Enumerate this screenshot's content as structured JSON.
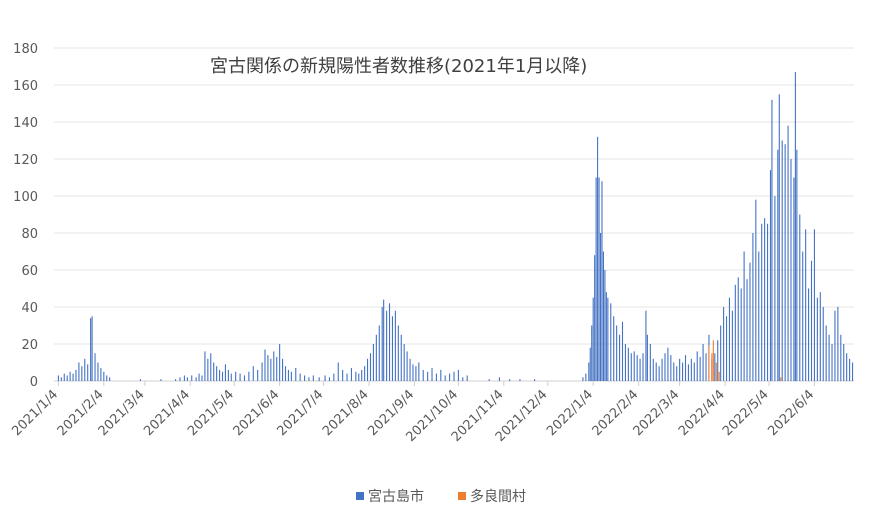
{
  "chart_data": {
    "type": "bar",
    "title": "宮古関係の新規陽性者数推移(2021年1月以降)",
    "xlabel": "",
    "ylabel": "",
    "ylim": [
      0,
      180
    ],
    "yticks": [
      0,
      20,
      40,
      60,
      80,
      100,
      120,
      140,
      160,
      180
    ],
    "x_range": [
      "2021-01-01",
      "2022-06-30"
    ],
    "xticks": [
      "2021/1/4",
      "2021/2/4",
      "2021/3/4",
      "2021/4/4",
      "2021/5/4",
      "2021/6/4",
      "2021/7/4",
      "2021/8/4",
      "2021/9/4",
      "2021/10/4",
      "2021/11/4",
      "2021/12/4",
      "2022/1/4",
      "2022/2/4",
      "2022/3/4",
      "2022/4/4",
      "2022/5/4",
      "2022/6/4"
    ],
    "grid": true,
    "legend_position": "bottom",
    "series": [
      {
        "name": "宮古島市",
        "color": "#4472C4",
        "points": [
          [
            "2021-01-04",
            3
          ],
          [
            "2021-01-06",
            2
          ],
          [
            "2021-01-08",
            4
          ],
          [
            "2021-01-10",
            3
          ],
          [
            "2021-01-12",
            5
          ],
          [
            "2021-01-14",
            4
          ],
          [
            "2021-01-16",
            6
          ],
          [
            "2021-01-18",
            10
          ],
          [
            "2021-01-20",
            8
          ],
          [
            "2021-01-22",
            12
          ],
          [
            "2021-01-24",
            9
          ],
          [
            "2021-01-26",
            34
          ],
          [
            "2021-01-27",
            35
          ],
          [
            "2021-01-29",
            15
          ],
          [
            "2021-01-31",
            10
          ],
          [
            "2021-02-02",
            7
          ],
          [
            "2021-02-04",
            5
          ],
          [
            "2021-02-06",
            3
          ],
          [
            "2021-02-08",
            2
          ],
          [
            "2021-03-01",
            1
          ],
          [
            "2021-03-15",
            1
          ],
          [
            "2021-03-25",
            1
          ],
          [
            "2021-03-28",
            2
          ],
          [
            "2021-03-31",
            3
          ],
          [
            "2021-04-02",
            2
          ],
          [
            "2021-04-05",
            3
          ],
          [
            "2021-04-08",
            2
          ],
          [
            "2021-04-10",
            4
          ],
          [
            "2021-04-12",
            3
          ],
          [
            "2021-04-14",
            16
          ],
          [
            "2021-04-16",
            12
          ],
          [
            "2021-04-18",
            15
          ],
          [
            "2021-04-20",
            10
          ],
          [
            "2021-04-22",
            8
          ],
          [
            "2021-04-24",
            6
          ],
          [
            "2021-04-26",
            5
          ],
          [
            "2021-04-28",
            9
          ],
          [
            "2021-04-30",
            6
          ],
          [
            "2021-05-02",
            4
          ],
          [
            "2021-05-05",
            5
          ],
          [
            "2021-05-08",
            4
          ],
          [
            "2021-05-11",
            3
          ],
          [
            "2021-05-14",
            5
          ],
          [
            "2021-05-17",
            8
          ],
          [
            "2021-05-20",
            6
          ],
          [
            "2021-05-23",
            10
          ],
          [
            "2021-05-25",
            17
          ],
          [
            "2021-05-27",
            14
          ],
          [
            "2021-05-29",
            12
          ],
          [
            "2021-05-31",
            16
          ],
          [
            "2021-06-02",
            13
          ],
          [
            "2021-06-04",
            20
          ],
          [
            "2021-06-06",
            12
          ],
          [
            "2021-06-08",
            8
          ],
          [
            "2021-06-10",
            6
          ],
          [
            "2021-06-12",
            5
          ],
          [
            "2021-06-15",
            7
          ],
          [
            "2021-06-18",
            4
          ],
          [
            "2021-06-21",
            3
          ],
          [
            "2021-06-24",
            2
          ],
          [
            "2021-06-27",
            3
          ],
          [
            "2021-07-01",
            2
          ],
          [
            "2021-07-05",
            3
          ],
          [
            "2021-07-08",
            2
          ],
          [
            "2021-07-11",
            4
          ],
          [
            "2021-07-14",
            10
          ],
          [
            "2021-07-17",
            6
          ],
          [
            "2021-07-20",
            4
          ],
          [
            "2021-07-23",
            7
          ],
          [
            "2021-07-26",
            5
          ],
          [
            "2021-07-28",
            4
          ],
          [
            "2021-07-30",
            6
          ],
          [
            "2021-08-01",
            8
          ],
          [
            "2021-08-03",
            12
          ],
          [
            "2021-08-05",
            15
          ],
          [
            "2021-08-07",
            20
          ],
          [
            "2021-08-09",
            25
          ],
          [
            "2021-08-11",
            30
          ],
          [
            "2021-08-13",
            40
          ],
          [
            "2021-08-14",
            44
          ],
          [
            "2021-08-16",
            38
          ],
          [
            "2021-08-18",
            42
          ],
          [
            "2021-08-20",
            35
          ],
          [
            "2021-08-22",
            38
          ],
          [
            "2021-08-24",
            30
          ],
          [
            "2021-08-26",
            25
          ],
          [
            "2021-08-28",
            20
          ],
          [
            "2021-08-30",
            16
          ],
          [
            "2021-09-01",
            12
          ],
          [
            "2021-09-03",
            9
          ],
          [
            "2021-09-05",
            8
          ],
          [
            "2021-09-07",
            10
          ],
          [
            "2021-09-10",
            6
          ],
          [
            "2021-09-13",
            5
          ],
          [
            "2021-09-16",
            7
          ],
          [
            "2021-09-19",
            4
          ],
          [
            "2021-09-22",
            6
          ],
          [
            "2021-09-25",
            3
          ],
          [
            "2021-09-28",
            4
          ],
          [
            "2021-10-01",
            5
          ],
          [
            "2021-10-04",
            6
          ],
          [
            "2021-10-07",
            2
          ],
          [
            "2021-10-10",
            3
          ],
          [
            "2021-10-25",
            1
          ],
          [
            "2021-11-01",
            2
          ],
          [
            "2021-11-08",
            1
          ],
          [
            "2021-11-15",
            1
          ],
          [
            "2021-11-25",
            1
          ],
          [
            "2021-12-28",
            2
          ],
          [
            "2021-12-30",
            4
          ],
          [
            "2022-01-01",
            10
          ],
          [
            "2022-01-02",
            18
          ],
          [
            "2022-01-03",
            30
          ],
          [
            "2022-01-04",
            45
          ],
          [
            "2022-01-05",
            68
          ],
          [
            "2022-01-06",
            110
          ],
          [
            "2022-01-07",
            132
          ],
          [
            "2022-01-08",
            110
          ],
          [
            "2022-01-09",
            80
          ],
          [
            "2022-01-10",
            108
          ],
          [
            "2022-01-11",
            70
          ],
          [
            "2022-01-12",
            60
          ],
          [
            "2022-01-13",
            48
          ],
          [
            "2022-01-14",
            45
          ],
          [
            "2022-01-16",
            42
          ],
          [
            "2022-01-18",
            35
          ],
          [
            "2022-01-20",
            30
          ],
          [
            "2022-01-22",
            25
          ],
          [
            "2022-01-24",
            32
          ],
          [
            "2022-01-26",
            20
          ],
          [
            "2022-01-28",
            18
          ],
          [
            "2022-01-30",
            15
          ],
          [
            "2022-02-01",
            16
          ],
          [
            "2022-02-03",
            14
          ],
          [
            "2022-02-05",
            12
          ],
          [
            "2022-02-07",
            15
          ],
          [
            "2022-02-09",
            38
          ],
          [
            "2022-02-10",
            25
          ],
          [
            "2022-02-12",
            20
          ],
          [
            "2022-02-14",
            12
          ],
          [
            "2022-02-16",
            10
          ],
          [
            "2022-02-18",
            8
          ],
          [
            "2022-02-20",
            12
          ],
          [
            "2022-02-22",
            15
          ],
          [
            "2022-02-24",
            18
          ],
          [
            "2022-02-26",
            14
          ],
          [
            "2022-02-28",
            10
          ],
          [
            "2022-03-02",
            8
          ],
          [
            "2022-03-04",
            12
          ],
          [
            "2022-03-06",
            10
          ],
          [
            "2022-03-08",
            14
          ],
          [
            "2022-03-10",
            9
          ],
          [
            "2022-03-12",
            12
          ],
          [
            "2022-03-14",
            10
          ],
          [
            "2022-03-16",
            16
          ],
          [
            "2022-03-18",
            13
          ],
          [
            "2022-03-20",
            20
          ],
          [
            "2022-03-22",
            15
          ],
          [
            "2022-03-24",
            25
          ],
          [
            "2022-03-26",
            12
          ],
          [
            "2022-03-28",
            15
          ],
          [
            "2022-03-30",
            22
          ],
          [
            "2022-04-01",
            30
          ],
          [
            "2022-04-03",
            40
          ],
          [
            "2022-04-05",
            35
          ],
          [
            "2022-04-07",
            45
          ],
          [
            "2022-04-09",
            38
          ],
          [
            "2022-04-11",
            52
          ],
          [
            "2022-04-13",
            56
          ],
          [
            "2022-04-15",
            50
          ],
          [
            "2022-04-17",
            70
          ],
          [
            "2022-04-19",
            55
          ],
          [
            "2022-04-21",
            64
          ],
          [
            "2022-04-23",
            80
          ],
          [
            "2022-04-25",
            98
          ],
          [
            "2022-04-27",
            70
          ],
          [
            "2022-04-29",
            85
          ],
          [
            "2022-05-01",
            88
          ],
          [
            "2022-05-03",
            85
          ],
          [
            "2022-05-05",
            114
          ],
          [
            "2022-05-06",
            152
          ],
          [
            "2022-05-08",
            100
          ],
          [
            "2022-05-10",
            125
          ],
          [
            "2022-05-11",
            155
          ],
          [
            "2022-05-13",
            130
          ],
          [
            "2022-05-15",
            128
          ],
          [
            "2022-05-17",
            138
          ],
          [
            "2022-05-19",
            120
          ],
          [
            "2022-05-21",
            110
          ],
          [
            "2022-05-22",
            167
          ],
          [
            "2022-05-23",
            125
          ],
          [
            "2022-05-25",
            90
          ],
          [
            "2022-05-27",
            70
          ],
          [
            "2022-05-29",
            82
          ],
          [
            "2022-05-31",
            50
          ],
          [
            "2022-06-02",
            65
          ],
          [
            "2022-06-04",
            82
          ],
          [
            "2022-06-06",
            45
          ],
          [
            "2022-06-08",
            48
          ],
          [
            "2022-06-10",
            40
          ],
          [
            "2022-06-12",
            30
          ],
          [
            "2022-06-14",
            25
          ],
          [
            "2022-06-16",
            20
          ],
          [
            "2022-06-18",
            38
          ],
          [
            "2022-06-20",
            40
          ],
          [
            "2022-06-22",
            25
          ],
          [
            "2022-06-24",
            20
          ],
          [
            "2022-06-26",
            15
          ],
          [
            "2022-06-28",
            12
          ],
          [
            "2022-06-30",
            10
          ]
        ]
      },
      {
        "name": "多良間村",
        "color": "#ED7D31",
        "points": [
          [
            "2022-03-24",
            19
          ],
          [
            "2022-03-26",
            15
          ],
          [
            "2022-03-27",
            22
          ],
          [
            "2022-03-29",
            10
          ],
          [
            "2022-03-31",
            5
          ],
          [
            "2022-05-12",
            2
          ]
        ]
      }
    ]
  }
}
